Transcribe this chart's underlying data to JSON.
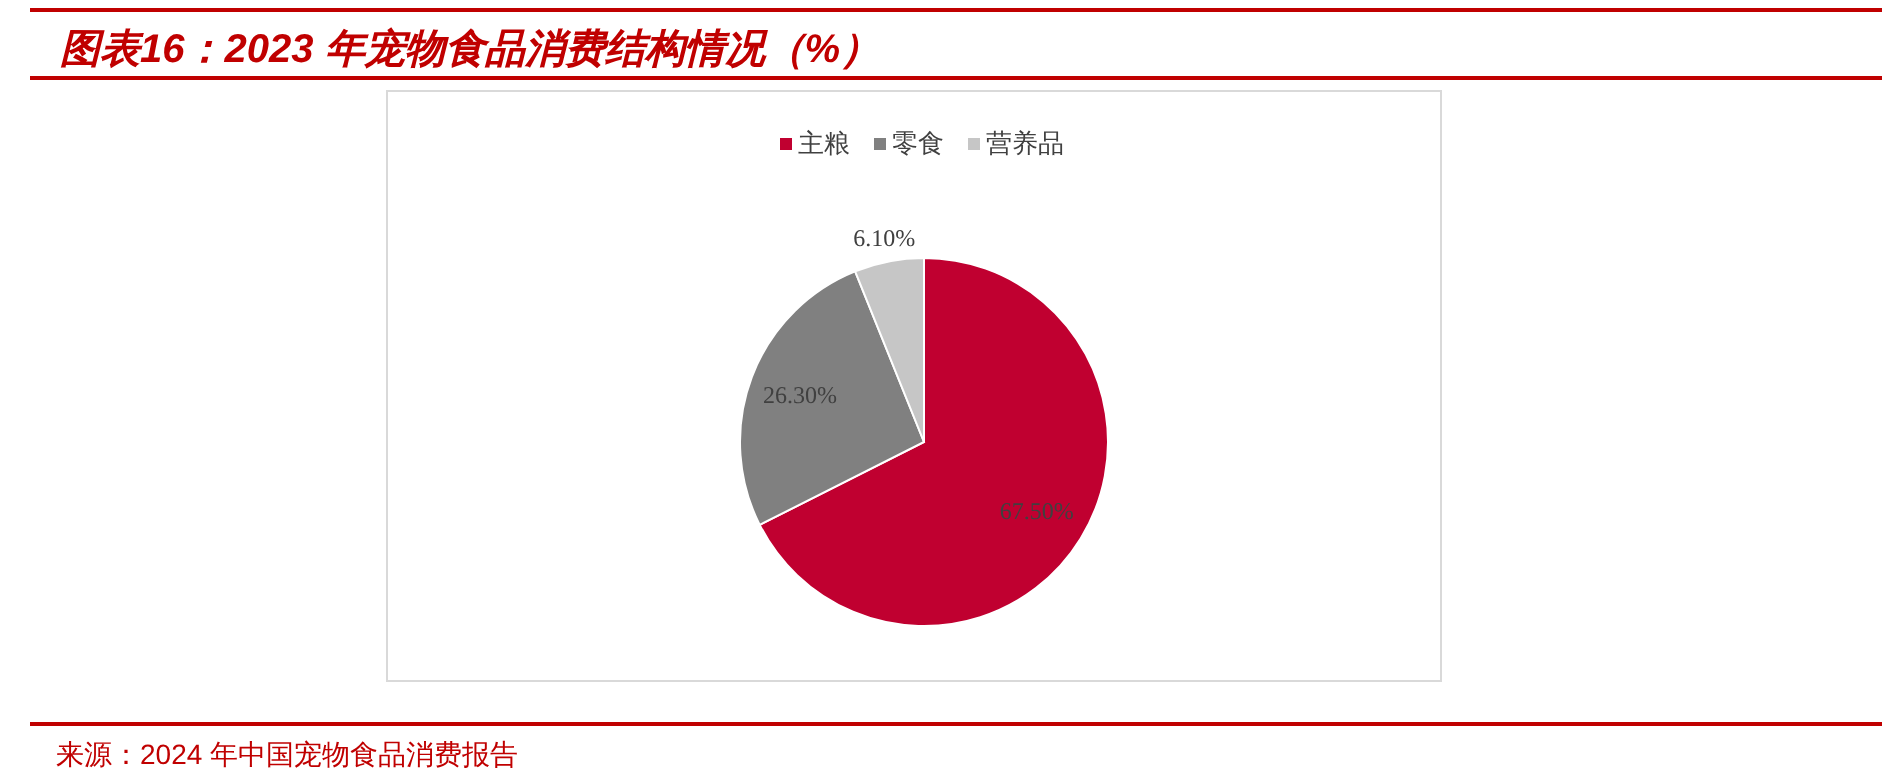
{
  "chart_data": {
    "type": "pie",
    "title": "图表16：2023 年宠物食品消费结构情况（%）",
    "categories": [
      "主粮",
      "零食",
      "营养品"
    ],
    "values": [
      67.5,
      26.3,
      6.1
    ],
    "value_labels": [
      "67.50%",
      "26.30%",
      "6.10%"
    ],
    "colors": [
      "#c00030",
      "#808080",
      "#c6c6c6"
    ],
    "legend": "top",
    "annotations": [
      "来源：2024 年中国宠物食品消费报告"
    ]
  }
}
